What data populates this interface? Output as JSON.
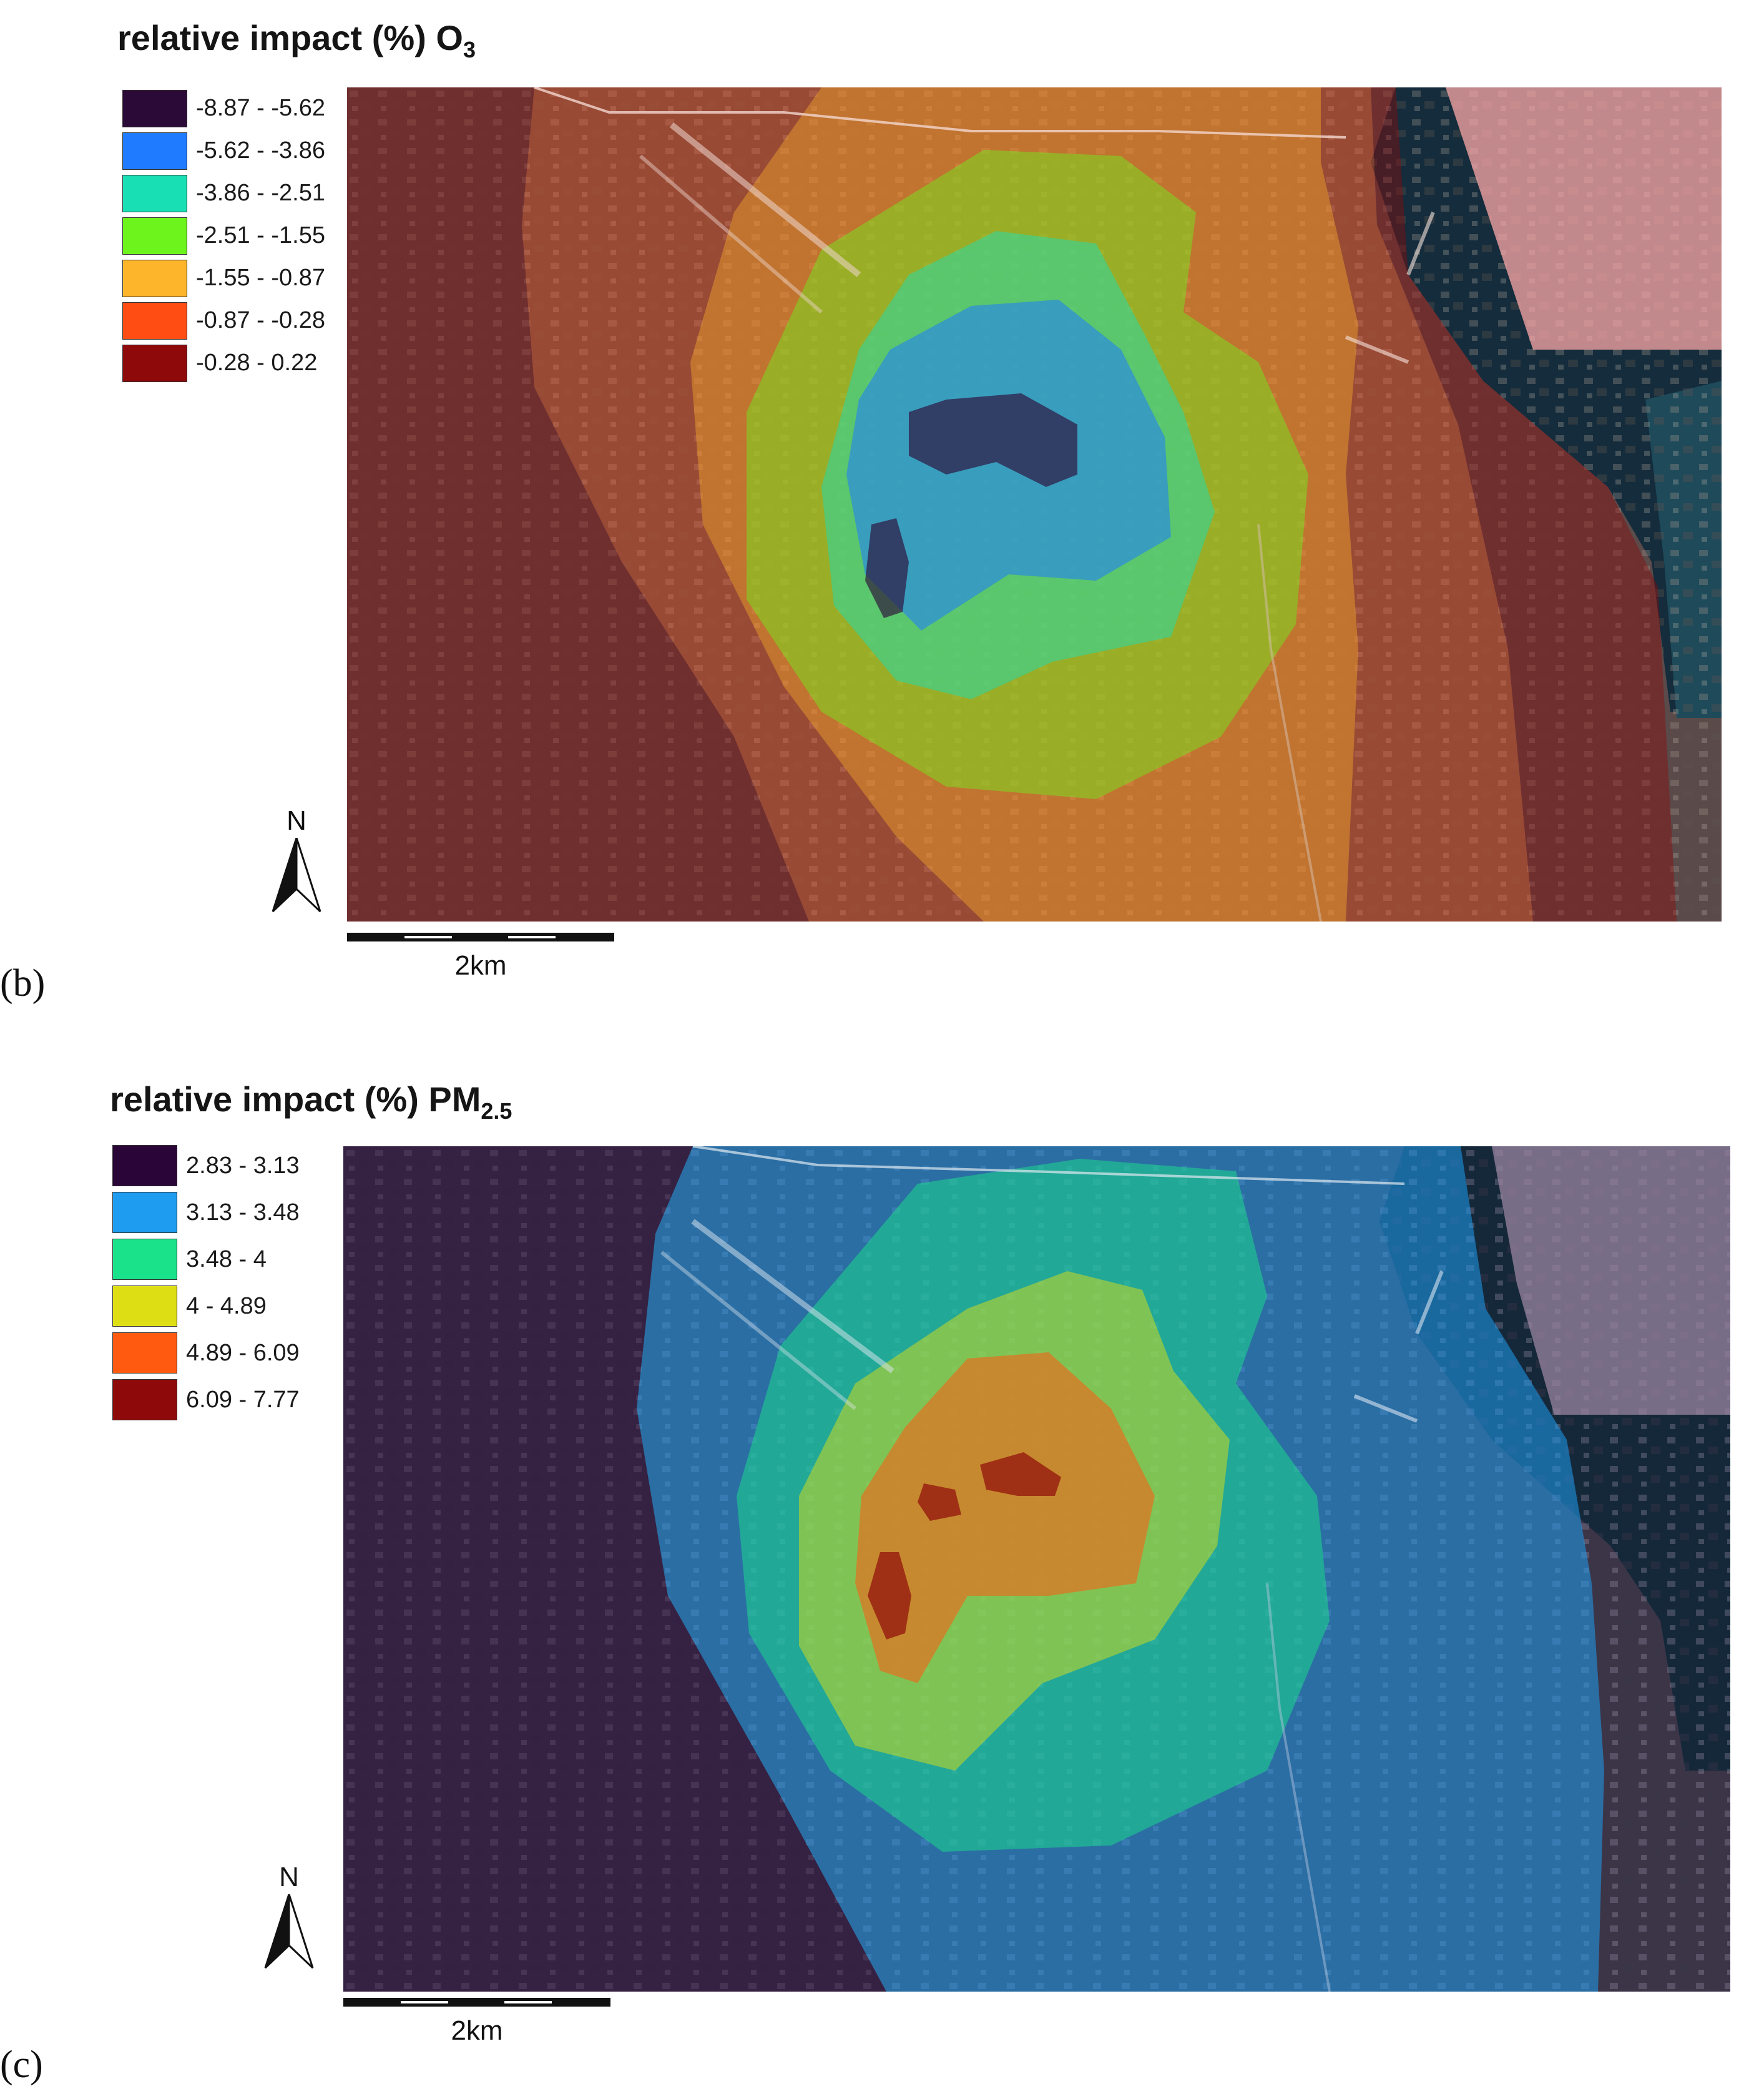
{
  "panels": [
    {
      "label": "(b)",
      "title_main": "relative impact (%) O",
      "title_sub": "3",
      "legend": [
        {
          "range": "-8.87 - -5.62",
          "color": "#2c0a38"
        },
        {
          "range": "-5.62 - -3.86",
          "color": "#1f7bff"
        },
        {
          "range": "-3.86 - -2.51",
          "color": "#19dfb4"
        },
        {
          "range": "-2.51 - -1.55",
          "color": "#6cf41c"
        },
        {
          "range": "-1.55 - -0.87",
          "color": "#fdb52b"
        },
        {
          "range": "-0.87 - -0.28",
          "color": "#ff4d14"
        },
        {
          "range": "-0.28 - 0.22",
          "color": "#8e0909"
        }
      ],
      "north_label": "N",
      "scale_label": "2km"
    },
    {
      "label": "(c)",
      "title_main": "relative impact (%) PM",
      "title_sub": "2.5",
      "legend": [
        {
          "range": "2.83 - 3.13",
          "color": "#2a0538"
        },
        {
          "range": "3.13 - 3.48",
          "color": "#1d9cf0"
        },
        {
          "range": "3.48 - 4",
          "color": "#19e28a"
        },
        {
          "range": "4 - 4.89",
          "color": "#dede14"
        },
        {
          "range": "4.89 - 6.09",
          "color": "#ff5a10"
        },
        {
          "range": "6.09 - 7.77",
          "color": "#8e0a0a"
        }
      ],
      "north_label": "N",
      "scale_label": "2km"
    }
  ]
}
